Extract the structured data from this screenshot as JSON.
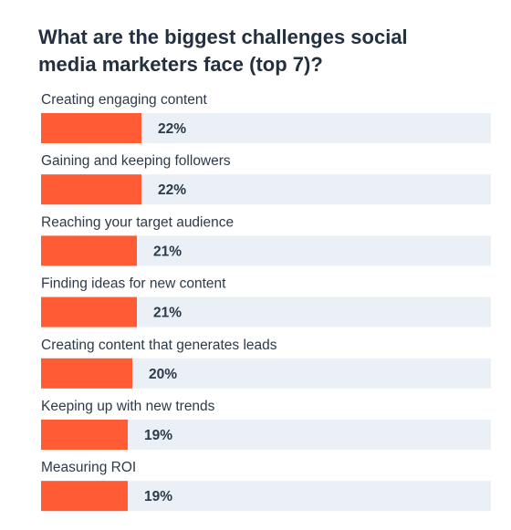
{
  "chart_data": {
    "type": "bar",
    "orientation": "horizontal",
    "title": "What are the biggest challenges social media marketers face (top 7)?",
    "categories": [
      "Creating engaging content",
      "Gaining and keeping followers",
      "Reaching your target audience",
      "Finding ideas for new content",
      "Creating content that generates leads",
      "Keeping up with new trends",
      "Measuring ROI"
    ],
    "values": [
      22,
      22,
      21,
      21,
      20,
      19,
      19
    ],
    "value_labels": [
      "22%",
      "22%",
      "21%",
      "21%",
      "20%",
      "19%",
      "19%"
    ],
    "unit": "%",
    "xlim": [
      0,
      100
    ],
    "grid": false,
    "legend": "none"
  },
  "colors": {
    "bar_fill": "#ff5c35",
    "track_fill": "#eaf0f6",
    "title_text": "#23303f",
    "label_text": "#2d3a49"
  }
}
